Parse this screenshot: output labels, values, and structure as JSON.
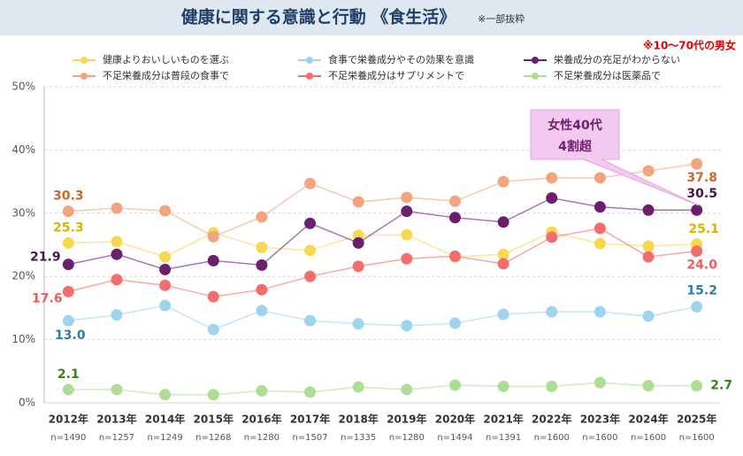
{
  "chart_data": {
    "type": "line",
    "title": "健康に関する意識と行動 《食生活》",
    "note": "※一部抜粋",
    "subtitle": "※10～70代の男女",
    "callout": [
      "女性40代",
      "4割超"
    ],
    "categories": [
      "2012年",
      "2013年",
      "2014年",
      "2015年",
      "2016年",
      "2017年",
      "2018年",
      "2019年",
      "2020年",
      "2021年",
      "2022年",
      "2023年",
      "2024年",
      "2025年"
    ],
    "sample_sizes": [
      "n=1490",
      "n=1257",
      "n=1249",
      "n=1268",
      "n=1280",
      "n=1507",
      "n=1335",
      "n=1280",
      "n=1494",
      "n=1391",
      "n=1600",
      "n=1600",
      "n=1600",
      "n=1600"
    ],
    "ylim": [
      0,
      50
    ],
    "yticks": [
      {
        "value": 0,
        "label": "0%"
      },
      {
        "value": 10,
        "label": "10%"
      },
      {
        "value": 20,
        "label": "20%"
      },
      {
        "value": 30,
        "label": "30%"
      },
      {
        "value": 40,
        "label": "40%"
      },
      {
        "value": 50,
        "label": "50%"
      }
    ],
    "grid": true,
    "series": [
      {
        "name": "健康よりおいしいものを選ぶ",
        "color": "#f7d84f",
        "label_color": "#d9b400",
        "values": [
          25.3,
          25.5,
          23.1,
          26.9,
          24.6,
          24.1,
          26.5,
          26.6,
          23.1,
          23.5,
          27.0,
          25.2,
          24.8,
          25.1
        ],
        "value_labels": [
          "25.3",
          null,
          null,
          null,
          null,
          null,
          null,
          null,
          null,
          null,
          null,
          null,
          null,
          "25.1"
        ]
      },
      {
        "name": "食事で栄養成分やその効果を意識",
        "color": "#9fd4ef",
        "label_color": "#2a7fa8",
        "values": [
          13.0,
          13.9,
          15.4,
          11.6,
          14.6,
          13.0,
          12.5,
          12.2,
          12.6,
          14.0,
          14.4,
          14.4,
          13.7,
          15.2
        ],
        "value_labels": [
          "13.0",
          null,
          null,
          null,
          null,
          null,
          null,
          null,
          null,
          null,
          null,
          null,
          null,
          "15.2"
        ]
      },
      {
        "name": "栄養成分の充足がわからない",
        "color": "#6b1f6e",
        "label_color": "#4a1450",
        "values": [
          21.9,
          23.5,
          21.1,
          22.5,
          21.8,
          28.4,
          25.3,
          30.3,
          29.3,
          28.6,
          32.4,
          31.0,
          30.5,
          30.5
        ],
        "value_labels": [
          "21.9",
          null,
          null,
          null,
          null,
          null,
          null,
          null,
          null,
          null,
          null,
          null,
          null,
          "30.5"
        ]
      },
      {
        "name": "不足栄養成分は普段の食事で",
        "color": "#f2a47f",
        "label_color": "#c8682c",
        "values": [
          30.3,
          30.8,
          30.4,
          26.3,
          29.4,
          34.7,
          31.8,
          32.5,
          31.9,
          35.0,
          35.6,
          35.6,
          36.7,
          37.8
        ],
        "value_labels": [
          "30.3",
          null,
          null,
          null,
          null,
          null,
          null,
          null,
          null,
          null,
          null,
          null,
          null,
          "37.8"
        ]
      },
      {
        "name": "不足栄養成分はサプリメントで",
        "color": "#f46d6d",
        "label_color": "#f05a5a",
        "values": [
          17.6,
          19.5,
          18.6,
          16.8,
          17.9,
          20.0,
          21.6,
          22.8,
          23.2,
          22.0,
          26.2,
          27.6,
          23.1,
          24.0
        ],
        "value_labels": [
          "17.6",
          null,
          null,
          null,
          null,
          null,
          null,
          null,
          null,
          null,
          null,
          null,
          null,
          "24.0"
        ]
      },
      {
        "name": "不足栄養成分は医薬品で",
        "color": "#aede95",
        "label_color": "#3f7f1f",
        "values": [
          2.1,
          2.1,
          1.3,
          1.3,
          1.9,
          1.7,
          2.5,
          2.1,
          2.8,
          2.6,
          2.6,
          3.2,
          2.7,
          2.7
        ],
        "value_labels": [
          "2.1",
          null,
          null,
          null,
          null,
          null,
          null,
          null,
          null,
          null,
          null,
          null,
          null,
          "2.7"
        ]
      }
    ]
  }
}
